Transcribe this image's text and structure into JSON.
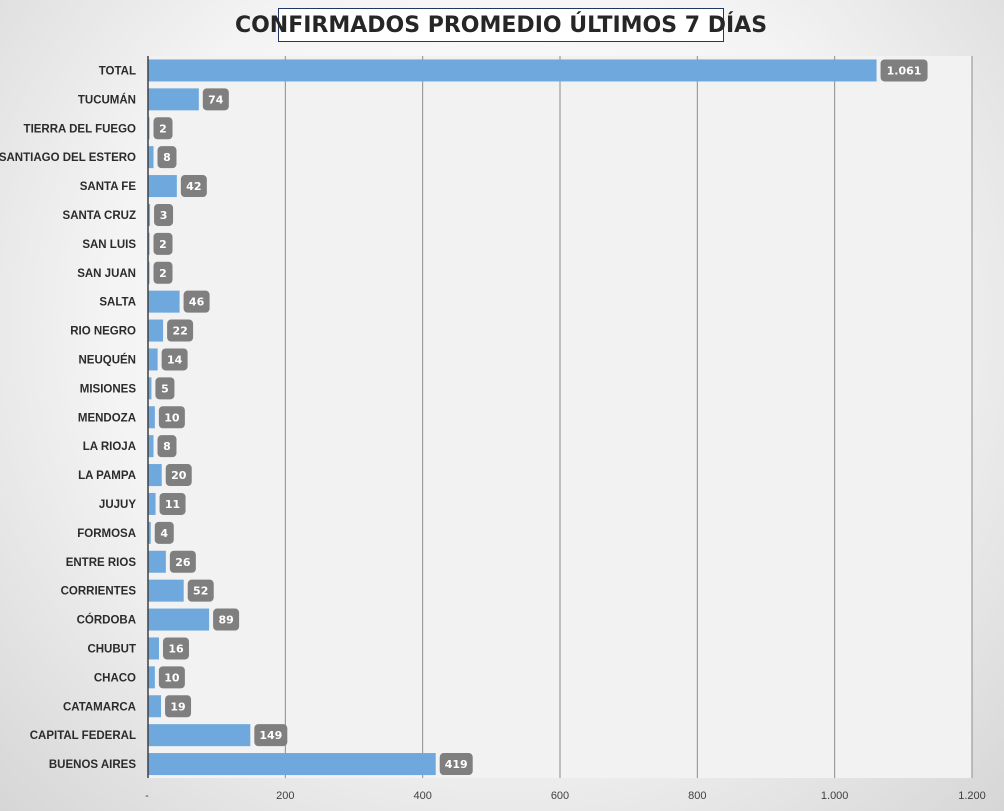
{
  "chart_data": {
    "type": "bar",
    "orientation": "horizontal",
    "title": "CONFIRMADOS PROMEDIO ÚLTIMOS 7 DÍAS",
    "xlabel": "",
    "ylabel": "",
    "xlim": [
      0,
      1200
    ],
    "grid": true,
    "x_ticks": [
      "-",
      "200",
      "400",
      "600",
      "800",
      "1.000",
      "1.200"
    ],
    "categories": [
      "TOTAL",
      "TUCUMÁN",
      "TIERRA  DEL FUEGO",
      "SANTIAGO  DEL ESTERO",
      "SANTA  FE",
      "SANTA  CRUZ",
      "SAN LUIS",
      "SAN JUAN",
      "SALTA",
      "RIO  NEGRO",
      "NEUQUÉN",
      "MISIONES",
      "MENDOZA",
      "LA RIOJA",
      "LA PAMPA",
      "JUJUY",
      "FORMOSA",
      "ENTRE  RIOS",
      "CORRIENTES",
      "CÓRDOBA",
      "CHUBUT",
      "CHACO",
      "CATAMARCA",
      "CAPITAL  FEDERAL",
      "BUENOS  AIRES"
    ],
    "values": [
      1061,
      74,
      2,
      8,
      42,
      3,
      2,
      2,
      46,
      22,
      14,
      5,
      10,
      8,
      20,
      11,
      4,
      26,
      52,
      89,
      16,
      10,
      19,
      149,
      419
    ],
    "value_labels": [
      "1.061",
      "74",
      "2",
      "8",
      "42",
      "3",
      "2",
      "2",
      "46",
      "22",
      "14",
      "5",
      "10",
      "8",
      "20",
      "11",
      "4",
      "26",
      "52",
      "89",
      "16",
      "10",
      "19",
      "149",
      "419"
    ],
    "bar_color": "#6fa8dc",
    "label_box_color": "#7f7f7f",
    "plot_background": "#f2f2f2"
  }
}
